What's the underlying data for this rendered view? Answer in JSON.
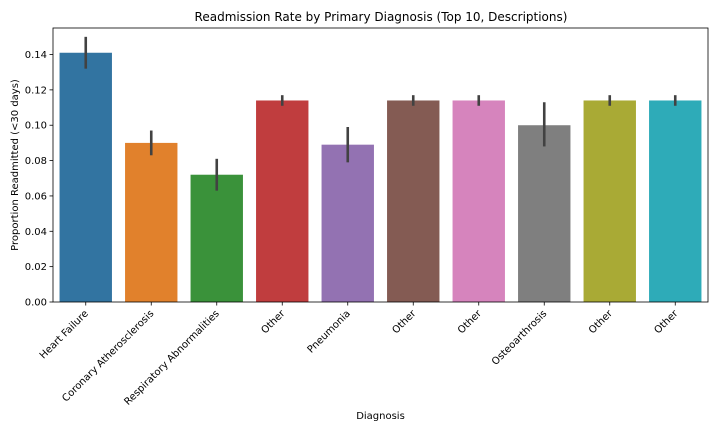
{
  "chart_data": {
    "type": "bar",
    "title": "Readmission Rate by Primary Diagnosis (Top 10, Descriptions)",
    "xlabel": "Diagnosis",
    "ylabel": "Proportion Readmitted (<30 days)",
    "ylim": [
      0,
      0.155
    ],
    "yticks": [
      "0.00",
      "0.02",
      "0.04",
      "0.06",
      "0.08",
      "0.10",
      "0.12",
      "0.14"
    ],
    "grid": false,
    "legend": "none",
    "categories": [
      "Heart Failure",
      "Coronary Atherosclerosis",
      "Respiratory Abnormalities",
      "Other",
      "Pneumonia",
      "Other",
      "Other",
      "Osteoarthrosis",
      "Other",
      "Other"
    ],
    "values": [
      0.141,
      0.09,
      0.072,
      0.114,
      0.089,
      0.114,
      0.114,
      0.1,
      0.114,
      0.114
    ],
    "error_low": [
      0.132,
      0.083,
      0.063,
      0.111,
      0.079,
      0.111,
      0.111,
      0.088,
      0.111,
      0.111
    ],
    "error_high": [
      0.15,
      0.097,
      0.081,
      0.117,
      0.099,
      0.117,
      0.117,
      0.113,
      0.117,
      0.117
    ],
    "colors": [
      "#3274a1",
      "#e1812c",
      "#3a923a",
      "#c03d3e",
      "#9372b2",
      "#845b53",
      "#d684bd",
      "#7f7f7f",
      "#a9aa35",
      "#2eabb8"
    ]
  }
}
